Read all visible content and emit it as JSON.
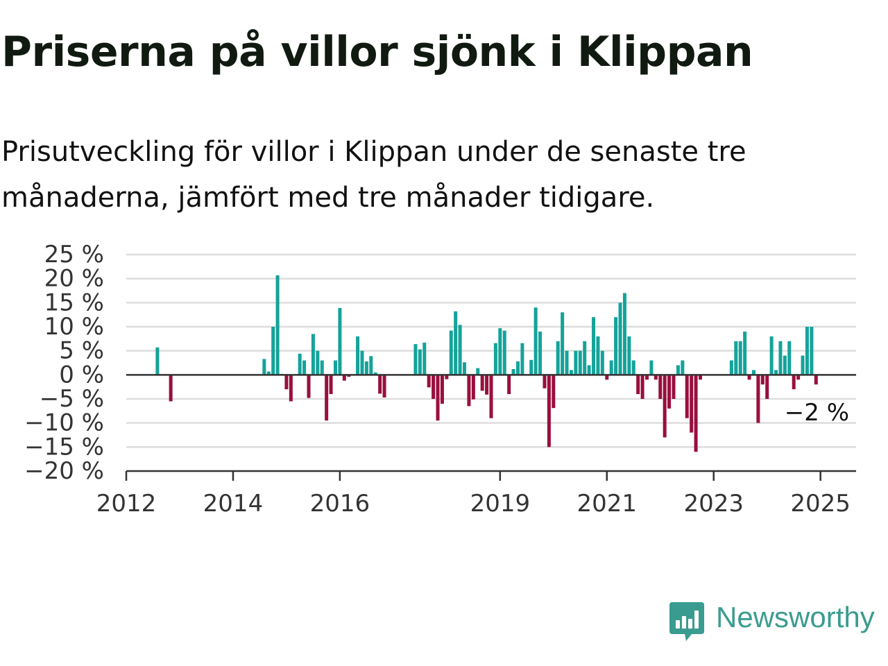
{
  "title": "Priserna på villor sjönk i Klippan",
  "subtitle": "Prisutveckling för villor i Klippan under de senaste tre månaderna, jämfört med tre månader tidigare.",
  "brand": {
    "name": "Newsworthy",
    "color": "#3a9c90"
  },
  "colors": {
    "positive": "#14a39a",
    "negative": "#990f3d",
    "zero_line": "#333333",
    "grid": "#dddddd"
  },
  "chart_data": {
    "type": "bar",
    "ylim": [
      -20,
      25
    ],
    "y_ticks": [
      {
        "value": 25,
        "label": "25 %"
      },
      {
        "value": 20,
        "label": "20 %"
      },
      {
        "value": 15,
        "label": "15 %"
      },
      {
        "value": 10,
        "label": "10 %"
      },
      {
        "value": 5,
        "label": "5 %"
      },
      {
        "value": 0,
        "label": "0 %"
      },
      {
        "value": -5,
        "label": "−5 %"
      },
      {
        "value": -10,
        "label": "−10 %"
      },
      {
        "value": -15,
        "label": "−15 %"
      },
      {
        "value": -20,
        "label": "−20 %"
      }
    ],
    "x_ticks": [
      {
        "value": "2012-01",
        "label": "2012"
      },
      {
        "value": "2014-01",
        "label": "2014"
      },
      {
        "value": "2016-01",
        "label": "2016"
      },
      {
        "value": "2019-01",
        "label": "2019"
      },
      {
        "value": "2021-01",
        "label": "2021"
      },
      {
        "value": "2023-01",
        "label": "2023"
      },
      {
        "value": "2025-01",
        "label": "2025"
      }
    ],
    "xlim": [
      "2012-01",
      "2025-09"
    ],
    "last_value_label": "−2 %",
    "points": [
      {
        "x": "2012-08",
        "y": 5.7
      },
      {
        "x": "2012-11",
        "y": -5.5
      },
      {
        "x": "2014-08",
        "y": 3.3
      },
      {
        "x": "2014-09",
        "y": 0.7
      },
      {
        "x": "2014-10",
        "y": 10
      },
      {
        "x": "2014-11",
        "y": 20.7
      },
      {
        "x": "2014-12",
        "y": 0.2
      },
      {
        "x": "2015-01",
        "y": -3
      },
      {
        "x": "2015-02",
        "y": -5.5
      },
      {
        "x": "2015-04",
        "y": 4.4
      },
      {
        "x": "2015-05",
        "y": 3
      },
      {
        "x": "2015-06",
        "y": -4.8
      },
      {
        "x": "2015-07",
        "y": 8.5
      },
      {
        "x": "2015-08",
        "y": 5
      },
      {
        "x": "2015-09",
        "y": 3
      },
      {
        "x": "2015-10",
        "y": -9.5
      },
      {
        "x": "2015-11",
        "y": -4
      },
      {
        "x": "2015-12",
        "y": 3
      },
      {
        "x": "2016-01",
        "y": 13.9
      },
      {
        "x": "2016-02",
        "y": -1.2
      },
      {
        "x": "2016-03",
        "y": -0.4
      },
      {
        "x": "2016-05",
        "y": 8
      },
      {
        "x": "2016-06",
        "y": 5
      },
      {
        "x": "2016-07",
        "y": 2.8
      },
      {
        "x": "2016-08",
        "y": 3.9
      },
      {
        "x": "2016-09",
        "y": 0.5
      },
      {
        "x": "2016-10",
        "y": -3.9
      },
      {
        "x": "2016-11",
        "y": -4.7
      },
      {
        "x": "2017-06",
        "y": 6.4
      },
      {
        "x": "2017-07",
        "y": 5.3
      },
      {
        "x": "2017-08",
        "y": 6.7
      },
      {
        "x": "2017-09",
        "y": -2.6
      },
      {
        "x": "2017-10",
        "y": -5
      },
      {
        "x": "2017-11",
        "y": -9.5
      },
      {
        "x": "2017-12",
        "y": -6
      },
      {
        "x": "2018-01",
        "y": -0.9
      },
      {
        "x": "2018-02",
        "y": 9.2
      },
      {
        "x": "2018-03",
        "y": 13.2
      },
      {
        "x": "2018-04",
        "y": 10.4
      },
      {
        "x": "2018-05",
        "y": 2.6
      },
      {
        "x": "2018-06",
        "y": -6.5
      },
      {
        "x": "2018-07",
        "y": -5.1
      },
      {
        "x": "2018-08",
        "y": 1.4
      },
      {
        "x": "2018-09",
        "y": -3.3
      },
      {
        "x": "2018-10",
        "y": -4.1
      },
      {
        "x": "2018-11",
        "y": -9
      },
      {
        "x": "2018-12",
        "y": 6.6
      },
      {
        "x": "2019-01",
        "y": 9.7
      },
      {
        "x": "2019-02",
        "y": 9.2
      },
      {
        "x": "2019-03",
        "y": -4
      },
      {
        "x": "2019-04",
        "y": 1.2
      },
      {
        "x": "2019-05",
        "y": 2.8
      },
      {
        "x": "2019-06",
        "y": 6.6
      },
      {
        "x": "2019-08",
        "y": 3.1
      },
      {
        "x": "2019-09",
        "y": 14
      },
      {
        "x": "2019-10",
        "y": 9
      },
      {
        "x": "2019-11",
        "y": -2.8
      },
      {
        "x": "2019-12",
        "y": -15
      },
      {
        "x": "2020-01",
        "y": -6.9
      },
      {
        "x": "2020-02",
        "y": 7
      },
      {
        "x": "2020-03",
        "y": 13
      },
      {
        "x": "2020-04",
        "y": 5
      },
      {
        "x": "2020-05",
        "y": 1
      },
      {
        "x": "2020-06",
        "y": 5
      },
      {
        "x": "2020-07",
        "y": 5
      },
      {
        "x": "2020-08",
        "y": 7
      },
      {
        "x": "2020-09",
        "y": 2
      },
      {
        "x": "2020-10",
        "y": 12
      },
      {
        "x": "2020-11",
        "y": 8
      },
      {
        "x": "2020-12",
        "y": 5
      },
      {
        "x": "2021-01",
        "y": -1
      },
      {
        "x": "2021-02",
        "y": 3
      },
      {
        "x": "2021-03",
        "y": 12
      },
      {
        "x": "2021-04",
        "y": 15
      },
      {
        "x": "2021-05",
        "y": 17
      },
      {
        "x": "2021-06",
        "y": 8
      },
      {
        "x": "2021-07",
        "y": 3
      },
      {
        "x": "2021-08",
        "y": -4
      },
      {
        "x": "2021-09",
        "y": -5
      },
      {
        "x": "2021-10",
        "y": -1
      },
      {
        "x": "2021-11",
        "y": 3
      },
      {
        "x": "2021-12",
        "y": -1
      },
      {
        "x": "2022-01",
        "y": -5
      },
      {
        "x": "2022-02",
        "y": -13
      },
      {
        "x": "2022-03",
        "y": -7
      },
      {
        "x": "2022-04",
        "y": -5
      },
      {
        "x": "2022-05",
        "y": 2
      },
      {
        "x": "2022-06",
        "y": 3
      },
      {
        "x": "2022-07",
        "y": -9
      },
      {
        "x": "2022-08",
        "y": -12
      },
      {
        "x": "2022-09",
        "y": -16
      },
      {
        "x": "2022-10",
        "y": -1
      },
      {
        "x": "2023-05",
        "y": 3
      },
      {
        "x": "2023-06",
        "y": 7
      },
      {
        "x": "2023-07",
        "y": 7
      },
      {
        "x": "2023-08",
        "y": 9
      },
      {
        "x": "2023-09",
        "y": -1
      },
      {
        "x": "2023-10",
        "y": 1
      },
      {
        "x": "2023-11",
        "y": -10
      },
      {
        "x": "2023-12",
        "y": -2
      },
      {
        "x": "2024-01",
        "y": -5
      },
      {
        "x": "2024-02",
        "y": 8
      },
      {
        "x": "2024-03",
        "y": 1
      },
      {
        "x": "2024-04",
        "y": 7
      },
      {
        "x": "2024-05",
        "y": 4
      },
      {
        "x": "2024-06",
        "y": 7
      },
      {
        "x": "2024-07",
        "y": -3
      },
      {
        "x": "2024-08",
        "y": -1
      },
      {
        "x": "2024-09",
        "y": 4
      },
      {
        "x": "2024-10",
        "y": 10
      },
      {
        "x": "2024-11",
        "y": 10
      },
      {
        "x": "2024-12",
        "y": -2
      }
    ]
  }
}
